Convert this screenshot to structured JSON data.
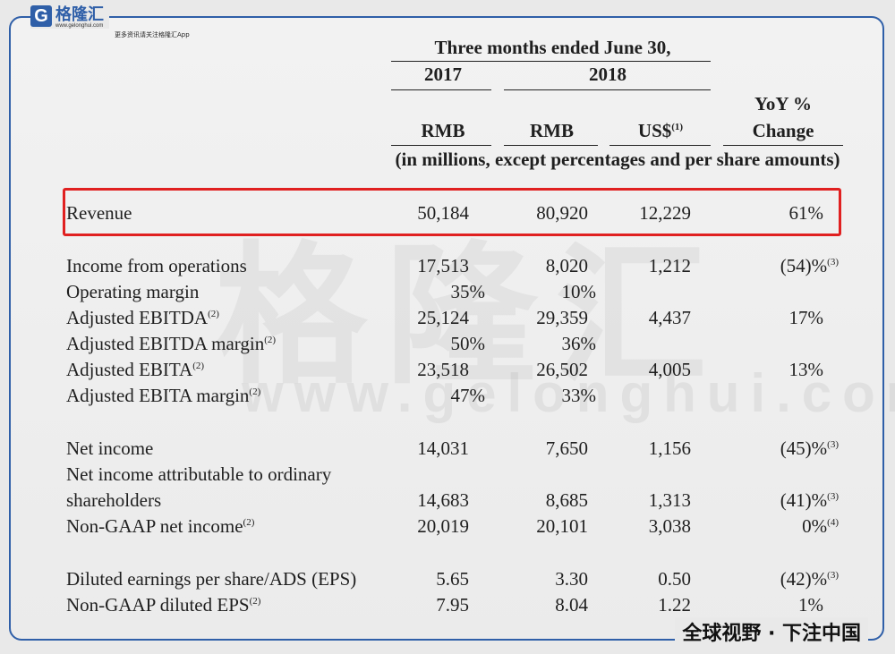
{
  "logo": {
    "mark": "G",
    "name": "格隆汇",
    "url": "www.gelonghui.com",
    "slogan": "更多资讯请关注格隆汇App"
  },
  "watermark": {
    "cn": "格隆汇",
    "url": "www.gelonghui.com"
  },
  "header": {
    "period": "Three months ended June 30,",
    "year_2017": "2017",
    "year_2018": "2018",
    "yoy_line1": "YoY %",
    "yoy_line2": "Change",
    "cur_rmb_1": "RMB",
    "cur_rmb_2": "RMB",
    "cur_usd": "US$",
    "cur_usd_note": "(1)",
    "units": "(in millions, except percentages and per share amounts)"
  },
  "rows": {
    "revenue": {
      "label": "Revenue",
      "v2017": "50,184",
      "v2018": "80,920",
      "usd": "12,229",
      "yoy": "61%"
    },
    "income_ops": {
      "label": "Income from operations",
      "v2017": "17,513",
      "v2018": "8,020",
      "usd": "1,212",
      "yoy": "(54)%",
      "yoy_note": "(3)"
    },
    "op_margin": {
      "label": "Operating margin",
      "v2017": "35%",
      "v2018": "10%"
    },
    "adj_ebitda": {
      "label": "Adjusted EBITDA",
      "note": "(2)",
      "v2017": "25,124",
      "v2018": "29,359",
      "usd": "4,437",
      "yoy": "17%"
    },
    "adj_ebitda_margin": {
      "label": "Adjusted EBITDA margin",
      "note": "(2)",
      "v2017": "50%",
      "v2018": "36%"
    },
    "adj_ebita": {
      "label": "Adjusted EBITA",
      "note": "(2)",
      "v2017": "23,518",
      "v2018": "26,502",
      "usd": "4,005",
      "yoy": "13%"
    },
    "adj_ebita_margin": {
      "label": "Adjusted EBITA margin",
      "note": "(2)",
      "v2017": "47%",
      "v2018": "33%"
    },
    "net_income": {
      "label": "Net income",
      "v2017": "14,031",
      "v2018": "7,650",
      "usd": "1,156",
      "yoy": "(45)%",
      "yoy_note": "(3)"
    },
    "ni_attr": {
      "label1": "Net income attributable to ordinary",
      "label2": "shareholders",
      "v2017": "14,683",
      "v2018": "8,685",
      "usd": "1,313",
      "yoy": "(41)%",
      "yoy_note": "(3)"
    },
    "nongaap_ni": {
      "label": "Non-GAAP net income",
      "note": "(2)",
      "v2017": "20,019",
      "v2018": "20,101",
      "usd": "3,038",
      "yoy": "0%",
      "yoy_note": "(4)"
    },
    "eps": {
      "label": "Diluted earnings per share/ADS (EPS)",
      "v2017": "5.65",
      "v2018": "3.30",
      "usd": "0.50",
      "yoy": "(42)%",
      "yoy_note": "(3)"
    },
    "nongaap_eps": {
      "label": "Non-GAAP diluted EPS",
      "note": "(2)",
      "v2017": "7.95",
      "v2018": "8.04",
      "usd": "1.22",
      "yoy": "1%"
    }
  },
  "footer": {
    "slogan": "全球视野 · 下注中国"
  },
  "colors": {
    "frame": "#2f5fa8",
    "highlight": "#e02020"
  }
}
